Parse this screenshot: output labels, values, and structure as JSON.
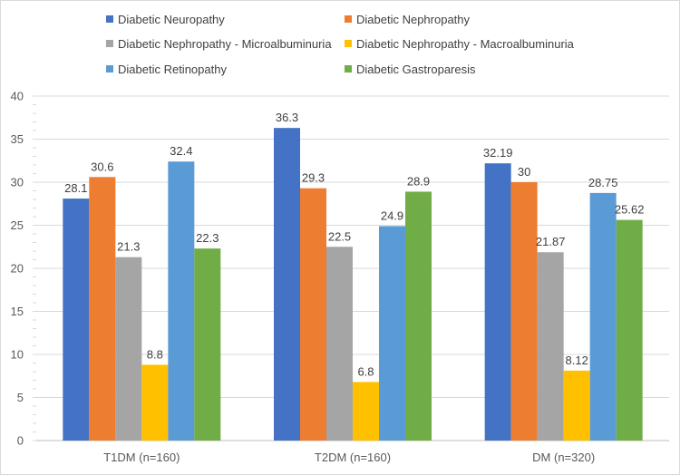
{
  "chart_data": {
    "type": "bar",
    "categories": [
      "T1DM (n=160)",
      "T2DM (n=160)",
      "DM (n=320)"
    ],
    "series": [
      {
        "name": "Diabetic Neuropathy",
        "color": "#4472c4",
        "values": [
          28.1,
          36.3,
          32.19
        ],
        "labels": [
          "28.1",
          "36.3",
          "32.19"
        ]
      },
      {
        "name": "Diabetic Nephropathy",
        "color": "#ed7d31",
        "values": [
          30.6,
          29.3,
          30
        ],
        "labels": [
          "30.6",
          "29.3",
          "30"
        ]
      },
      {
        "name": "Diabetic Nephropathy - Microalbuminuria",
        "color": "#a5a5a5",
        "values": [
          21.3,
          22.5,
          21.87
        ],
        "labels": [
          "21.3",
          "22.5",
          "21.87"
        ]
      },
      {
        "name": "Diabetic Nephropathy - Macroalbuminuria",
        "color": "#ffc000",
        "values": [
          8.8,
          6.8,
          8.12
        ],
        "labels": [
          "8.8",
          "6.8",
          "8.12"
        ]
      },
      {
        "name": "Diabetic Retinopathy",
        "color": "#5b9bd5",
        "values": [
          32.4,
          24.9,
          28.75
        ],
        "labels": [
          "32.4",
          "24.9",
          "28.75"
        ]
      },
      {
        "name": "Diabetic Gastroparesis",
        "color": "#70ad47",
        "values": [
          22.3,
          28.9,
          25.62
        ],
        "labels": [
          "22.3",
          "28.9",
          "25.62"
        ]
      }
    ],
    "ylim": [
      0,
      40
    ],
    "yticks": [
      0,
      5,
      10,
      15,
      20,
      25,
      30,
      35,
      40
    ],
    "ytick_labels": [
      "0",
      "5",
      "10",
      "15",
      "20",
      "25",
      "30",
      "35",
      "40"
    ],
    "grid": true,
    "legend": "top",
    "title": "",
    "xlabel": "",
    "ylabel": ""
  }
}
